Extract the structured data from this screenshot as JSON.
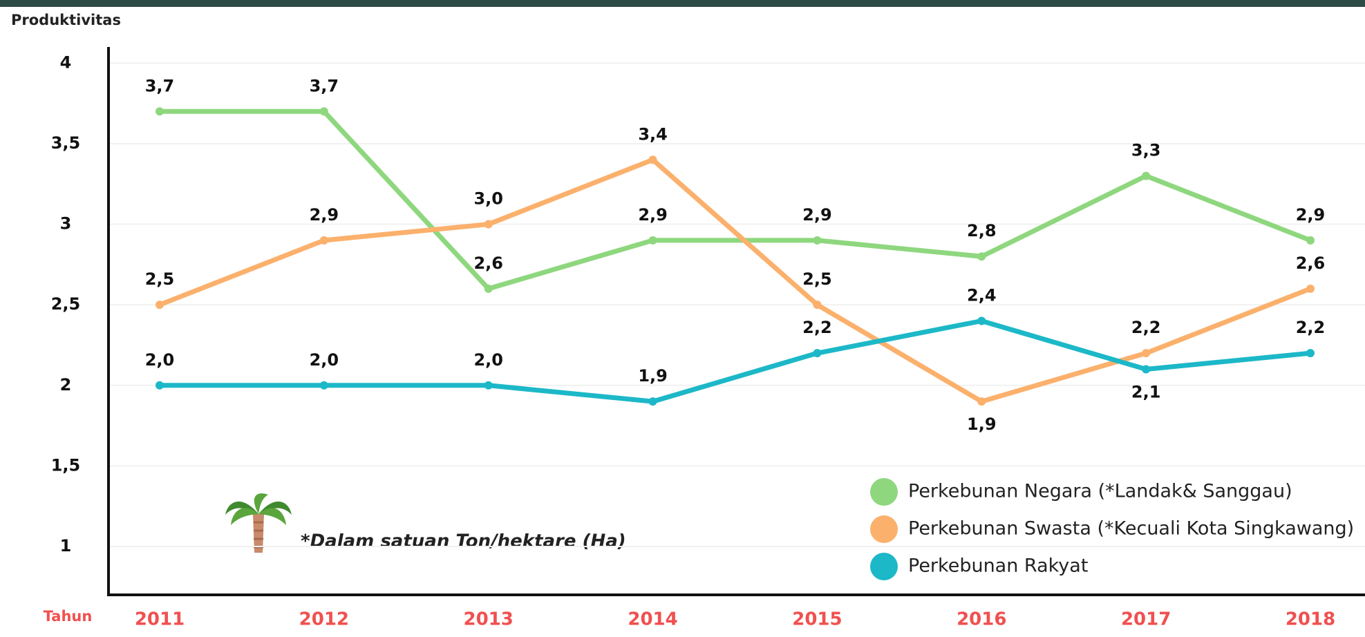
{
  "chart_data": {
    "type": "line",
    "y_label": "Produktivitas",
    "x_label": "Tahun",
    "note": "*Dalam satuan Ton/hektare (Ha)",
    "categories": [
      "2011",
      "2012",
      "2013",
      "2014",
      "2015",
      "2016",
      "2017",
      "2018"
    ],
    "series": [
      {
        "name": "Perkebunan Negara  (*Landak& Sanggau)",
        "color": "#8ed77e",
        "values": [
          3.7,
          3.7,
          2.6,
          2.9,
          2.9,
          2.8,
          3.3,
          2.9
        ],
        "value_labels": [
          "3,7",
          "3,7",
          "2,6",
          "2,9",
          "2,9",
          "2,8",
          "3,3",
          "2,9"
        ]
      },
      {
        "name": "Perkebunan Swasta (*Kecuali Kota Singkawang)",
        "color": "#fbb06c",
        "values": [
          2.5,
          2.9,
          3.0,
          3.4,
          2.5,
          1.9,
          2.2,
          2.6
        ],
        "value_labels": [
          "2,5",
          "2,9",
          "3,0",
          "3,4",
          "2,5",
          "1,9",
          "2,2",
          "2,6"
        ]
      },
      {
        "name": "Perkebunan Rakyat",
        "color": "#1cb8c8",
        "values": [
          2.0,
          2.0,
          2.0,
          1.9,
          2.2,
          2.4,
          2.1,
          2.2
        ],
        "value_labels": [
          "2,0",
          "2,0",
          "2,0",
          "1,9",
          "2,2",
          "2,4",
          "2,1",
          "2,2"
        ]
      }
    ],
    "ylim": [
      0.7,
      4.1
    ],
    "yticks": [
      1,
      {
        "value": 1.5,
        "label": "1,5"
      },
      2,
      {
        "value": 2.5,
        "label": "2,5"
      },
      3,
      {
        "value": 3.5,
        "label": "3,5"
      },
      4
    ],
    "grid": true
  }
}
